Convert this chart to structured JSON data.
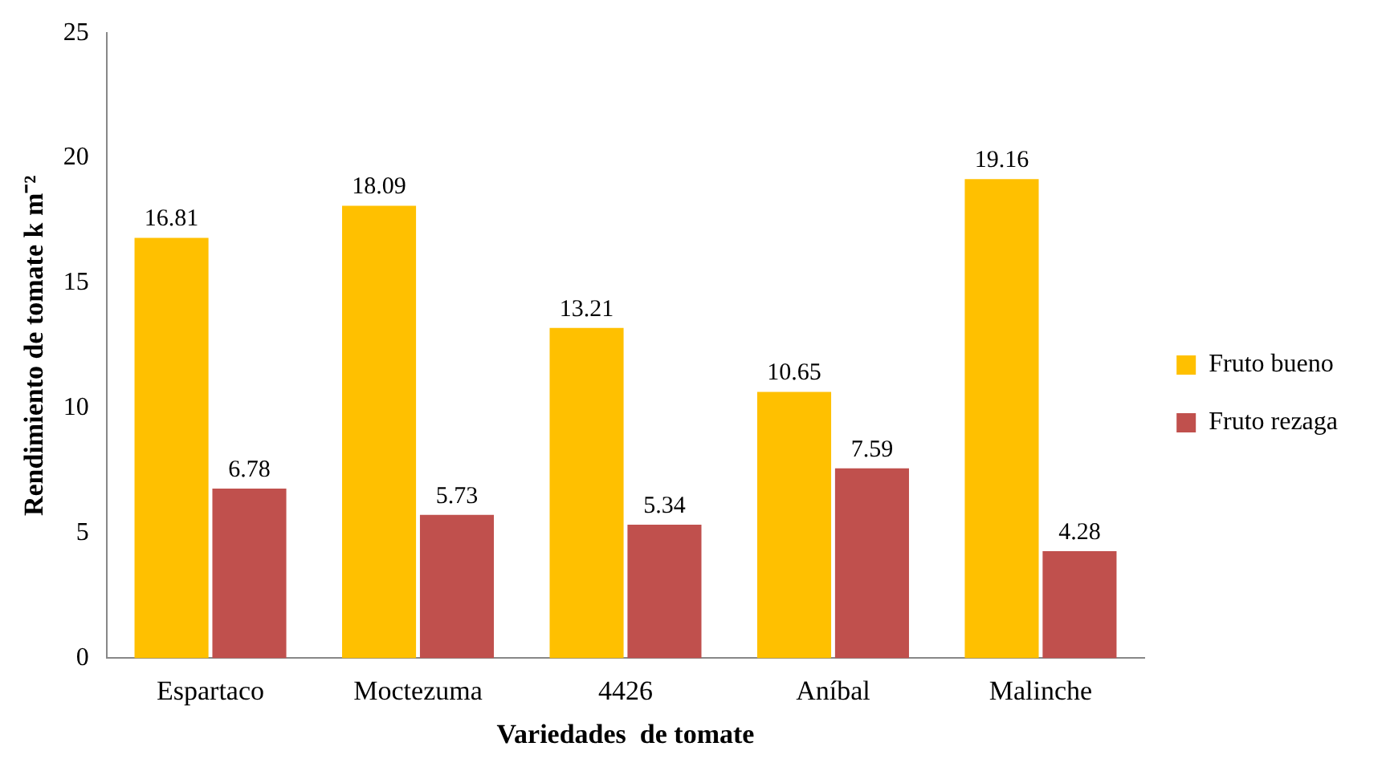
{
  "chart_data": {
    "type": "bar",
    "xlabel": "Variedades  de tomate",
    "ylabel": "Rendimiento de tomate k m⁻²",
    "categories": [
      "Espartaco",
      "Moctezuma",
      "4426",
      "Aníbal",
      "Malinche"
    ],
    "series": [
      {
        "name": "Fruto bueno",
        "color": "#ffc000",
        "values": [
          16.81,
          18.09,
          13.21,
          10.65,
          19.16
        ]
      },
      {
        "name": "Fruto rezaga",
        "color": "#c0504d",
        "values": [
          6.78,
          5.73,
          5.34,
          7.59,
          4.28
        ]
      }
    ],
    "ylim": [
      0,
      25
    ],
    "yticks": [
      0,
      5,
      10,
      15,
      20,
      25
    ],
    "grid": false,
    "legend": "right",
    "data_labels": true
  }
}
